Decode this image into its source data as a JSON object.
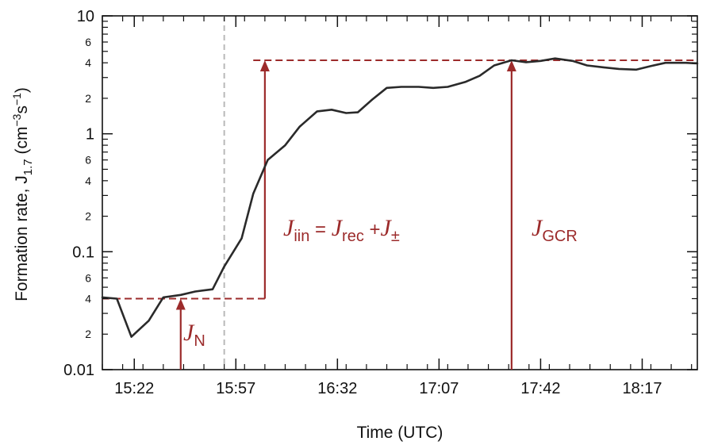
{
  "chart_data": {
    "type": "line",
    "xlabel": "Time (UTC)",
    "ylabel_main": "Formation  rate, J",
    "ylabel_sub": "1.7",
    "ylabel_unit_open": " (cm",
    "ylabel_unit_exp1": "−3",
    "ylabel_unit_mid": "s",
    "ylabel_unit_exp2": "−1",
    "ylabel_unit_close": ")",
    "yscale": "log",
    "ylim": [
      0.01,
      10
    ],
    "x_unit": "minutes",
    "xlim": [
      "15:11",
      "18:36"
    ],
    "x_tick_labels": [
      "15:22",
      "15:57",
      "16:32",
      "17:07",
      "17:42",
      "18:17"
    ],
    "y_major_ticks": [
      {
        "value": 0.01,
        "label": "0.01"
      },
      {
        "value": 0.1,
        "label": "0.1"
      },
      {
        "value": 1,
        "label": "1"
      },
      {
        "value": 10,
        "label": "10"
      }
    ],
    "y_minor_labels": [
      {
        "value": 0.02,
        "label": "2"
      },
      {
        "value": 0.04,
        "label": "4"
      },
      {
        "value": 0.06,
        "label": "6"
      },
      {
        "value": 0.2,
        "label": "2"
      },
      {
        "value": 0.4,
        "label": "4"
      },
      {
        "value": 0.6,
        "label": "6"
      },
      {
        "value": 2,
        "label": "2"
      },
      {
        "value": 4,
        "label": "4"
      },
      {
        "value": 6,
        "label": "6"
      }
    ],
    "series": [
      {
        "color": "#2a2a2a",
        "x": [
          "15:11",
          "15:16",
          "15:21",
          "15:27",
          "15:32",
          "15:38",
          "15:43",
          "15:49",
          "15:53",
          "15:59",
          "16:03",
          "16:08",
          "16:14",
          "16:19",
          "16:25",
          "16:30",
          "16:35",
          "16:39",
          "16:44",
          "16:49",
          "16:54",
          "17:00",
          "17:05",
          "17:10",
          "17:16",
          "17:21",
          "17:26",
          "17:32",
          "17:37",
          "17:42",
          "17:47",
          "17:53",
          "17:58",
          "18:04",
          "18:09",
          "18:15",
          "18:20",
          "18:25",
          "18:32",
          "18:36"
        ],
        "y": [
          0.041,
          0.04,
          0.019,
          0.026,
          0.041,
          0.043,
          0.046,
          0.048,
          0.075,
          0.13,
          0.31,
          0.6,
          0.8,
          1.15,
          1.55,
          1.6,
          1.5,
          1.52,
          1.95,
          2.45,
          2.5,
          2.5,
          2.45,
          2.5,
          2.75,
          3.1,
          3.8,
          4.2,
          4.05,
          4.15,
          4.35,
          4.15,
          3.8,
          3.65,
          3.55,
          3.5,
          3.75,
          4.0,
          4.0,
          3.95
        ]
      }
    ],
    "markers": {
      "vertical_dashed_line": {
        "x": "15:53",
        "color": "#b9b9b9"
      },
      "hlines": [
        {
          "y": 0.04,
          "x_from": "15:11",
          "x_to": "16:07",
          "color": "#9c2b2b"
        },
        {
          "y": 4.2,
          "x_from": "16:03",
          "x_to": "18:36",
          "color": "#9c2b2b"
        }
      ],
      "arrows": [
        {
          "x": "15:38",
          "y_from": 0.01,
          "y_to": 0.04,
          "color": "#9c2b2b"
        },
        {
          "x": "16:07",
          "y_from": 0.04,
          "y_to": 4.2,
          "color": "#9c2b2b"
        },
        {
          "x": "17:32",
          "y_from": 0.01,
          "y_to": 4.2,
          "color": "#9c2b2b"
        }
      ]
    },
    "annotations": {
      "jn": {
        "main": "J",
        "sub": "N"
      },
      "jiin": {
        "j1": "J",
        "s1": "iin",
        "mid": " = ",
        "j2": "J",
        "s2": "rec",
        "plus": " +",
        "j3": "J",
        "s3": "±"
      },
      "jgcr": {
        "main": "J",
        "sub": "GCR"
      }
    }
  }
}
